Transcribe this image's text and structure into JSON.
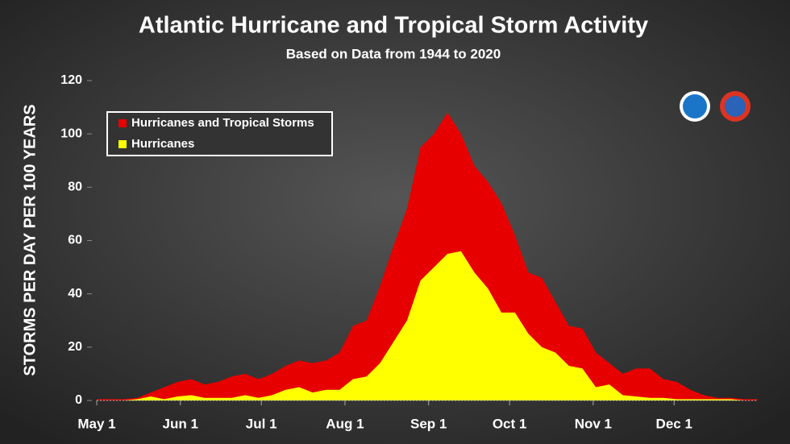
{
  "chart_data": {
    "type": "area",
    "title": "Atlantic Hurricane and Tropical Storm Activity",
    "subtitle": "Based on Data from 1944 to 2020",
    "y_label": "STORMS PER DAY PER 100 YEARS",
    "x": [
      0,
      5,
      10,
      15,
      20,
      25,
      30,
      35,
      40,
      45,
      50,
      55,
      60,
      65,
      70,
      75,
      80,
      85,
      90,
      95,
      100,
      105,
      110,
      115,
      120,
      125,
      130,
      135,
      140,
      145,
      150,
      155,
      160,
      165,
      170,
      175,
      180,
      185,
      190,
      195,
      200,
      205,
      210,
      215,
      220,
      225,
      230,
      235,
      240,
      245
    ],
    "series": [
      {
        "name": "Hurricanes and Tropical Storms",
        "color": "#e60000",
        "values": [
          0.5,
          0.5,
          0.5,
          1,
          3,
          5,
          7,
          8,
          6,
          7,
          9,
          10,
          8,
          10,
          13,
          15,
          14,
          15,
          18,
          28,
          30,
          43,
          58,
          72,
          95,
          100,
          108,
          100,
          88,
          82,
          74,
          62,
          48,
          46,
          37,
          28,
          27,
          18,
          14,
          10,
          12,
          12,
          8,
          7,
          4,
          2,
          1,
          1,
          0.5,
          0.5
        ]
      },
      {
        "name": "Hurricanes",
        "color": "#ffff00",
        "values": [
          0,
          0,
          0,
          0.5,
          1.5,
          0.5,
          1.5,
          2,
          1,
          1,
          1,
          2,
          1,
          2,
          4,
          5,
          3,
          4,
          4,
          8,
          9,
          14,
          22,
          30,
          45,
          50,
          55,
          56,
          48,
          42,
          33,
          33,
          25,
          20,
          18,
          13,
          12,
          5,
          6,
          2,
          1.5,
          1,
          1,
          0.5,
          0.5,
          0.5,
          0.5,
          0.5,
          0,
          0
        ]
      }
    ],
    "xlim": [
      0,
      245
    ],
    "xticks": [
      {
        "value": 0,
        "label": "May 1"
      },
      {
        "value": 31,
        "label": "Jun 1"
      },
      {
        "value": 61,
        "label": "Jul 1"
      },
      {
        "value": 92,
        "label": "Aug 1"
      },
      {
        "value": 123,
        "label": "Sep 1"
      },
      {
        "value": 153,
        "label": "Oct 1"
      },
      {
        "value": 184,
        "label": "Nov 1"
      },
      {
        "value": 214,
        "label": "Dec 1"
      }
    ],
    "ylim": [
      0,
      120
    ],
    "yticks": [
      0,
      20,
      40,
      60,
      80,
      100,
      120
    ],
    "grid": false,
    "legend": "upper-left"
  }
}
